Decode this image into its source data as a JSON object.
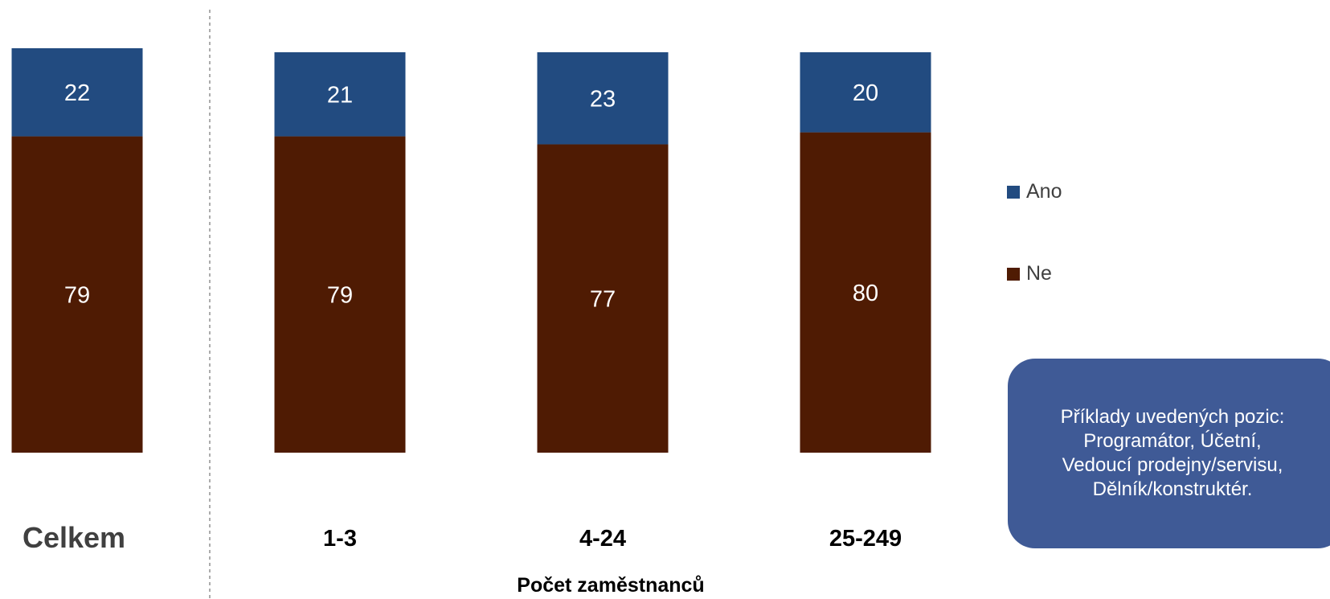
{
  "chart_data": {
    "type": "bar",
    "stacked": true,
    "categories": [
      "Celkem",
      "1-3",
      "4-24",
      "25-249"
    ],
    "series": [
      {
        "name": "Ano",
        "values": [
          22,
          21,
          23,
          20
        ],
        "color": "#224b80"
      },
      {
        "name": "Ne",
        "values": [
          79,
          79,
          77,
          80
        ],
        "color": "#4f1b03"
      }
    ],
    "xlabel": "Počet zaměstnanců",
    "ylabel": "",
    "ylim": [
      0,
      101
    ],
    "grid": false,
    "legend": "right"
  },
  "legend": {
    "items": [
      {
        "label": "Ano",
        "color": "#224b80"
      },
      {
        "label": "Ne",
        "color": "#4f1b03"
      }
    ]
  },
  "note": {
    "lines": [
      "Příklady uvedených pozic:",
      "Programátor, Účetní,",
      "Vedoucí prodejny/servisu,",
      "Dělník/konstruktér."
    ]
  }
}
